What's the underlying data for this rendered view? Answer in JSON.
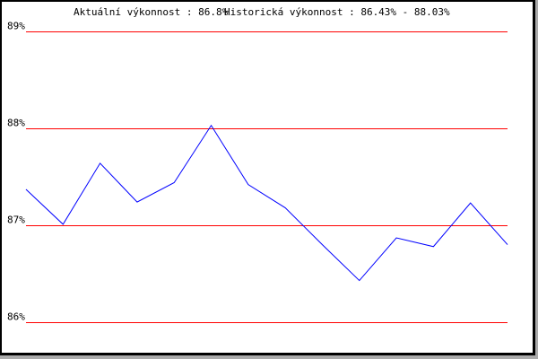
{
  "header": {
    "current_label": "Aktuální výkonnost : 86.8%",
    "historical_label": "Historická výkonnost : 86.43% - 88.03%"
  },
  "chart_data": {
    "type": "line",
    "ylim": [
      86,
      89
    ],
    "yticks": [
      89,
      88,
      87,
      86
    ],
    "ytick_labels": [
      "89%",
      "88%",
      "87%",
      "86%"
    ],
    "grid": true,
    "colors": {
      "grid": "#ff0000",
      "line": "#0000ff"
    },
    "values": [
      87.37,
      87.01,
      87.64,
      87.24,
      87.44,
      88.03,
      87.42,
      87.18,
      86.8,
      86.43,
      86.87,
      86.78,
      87.23,
      86.8
    ]
  }
}
